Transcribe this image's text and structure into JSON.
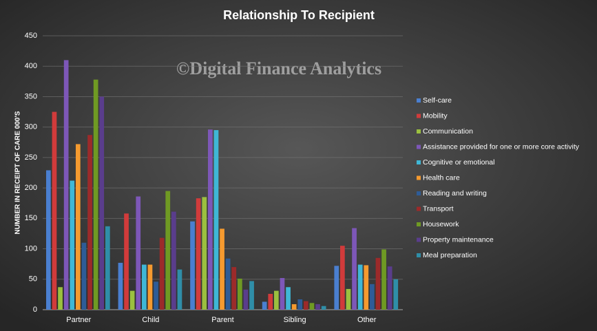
{
  "chart_data": {
    "type": "bar",
    "title": "Relationship To Recipient",
    "watermark": "©Digital Finance Analytics",
    "y_label": "NUMBER IN RECEIPT OF CARE 000'S",
    "categories": [
      "Partner",
      "Child",
      "Parent",
      "Sibling",
      "Other"
    ],
    "series": [
      {
        "name": "Self-care",
        "color": "#4a7fd0",
        "values": [
          229,
          77,
          145,
          13,
          72
        ]
      },
      {
        "name": "Mobility",
        "color": "#d13b3b",
        "values": [
          325,
          158,
          183,
          26,
          105
        ]
      },
      {
        "name": "Communication",
        "color": "#9bc03f",
        "values": [
          37,
          31,
          185,
          31,
          34
        ]
      },
      {
        "name": "Assistance provided for one or more core activity",
        "color": "#7d57b8",
        "values": [
          410,
          186,
          296,
          52,
          134
        ]
      },
      {
        "name": "Cognitive or emotional",
        "color": "#3fb7d6",
        "values": [
          212,
          74,
          295,
          37,
          74
        ]
      },
      {
        "name": "Health care",
        "color": "#f59a2f",
        "values": [
          272,
          74,
          133,
          9,
          73
        ]
      },
      {
        "name": "Reading and writing",
        "color": "#2e5c97",
        "values": [
          110,
          46,
          84,
          17,
          42
        ]
      },
      {
        "name": "Transport",
        "color": "#9c2a2a",
        "values": [
          287,
          118,
          70,
          14,
          85
        ]
      },
      {
        "name": "Housework",
        "color": "#6f9a23",
        "values": [
          378,
          195,
          51,
          11,
          99
        ]
      },
      {
        "name": "Property maintenance",
        "color": "#5a3d8c",
        "values": [
          350,
          161,
          33,
          9,
          71
        ]
      },
      {
        "name": "Meal preparation",
        "color": "#2f8ea8",
        "values": [
          137,
          66,
          47,
          6,
          50
        ]
      }
    ],
    "ylim": [
      0,
      450
    ],
    "yticks": [
      0,
      50,
      100,
      150,
      200,
      250,
      300,
      350,
      400,
      450
    ],
    "grid": true
  }
}
